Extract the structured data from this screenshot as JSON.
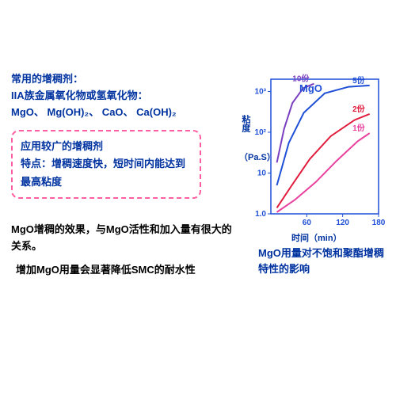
{
  "headings": {
    "line1": "常用的增稠剂：",
    "line2": "IIA族金属氧化物或氢氧化物：",
    "line3": "MgO、 Mg(OH)₂、 CaO、 Ca(OH)₂"
  },
  "callout": {
    "line1": "应用较广的增稠剂",
    "line2": "特点：增稠速度快，短时间内能达到最高粘度"
  },
  "mid": "MgO增稠的效果，与MgO活性和加入量有很大的关系。",
  "bottom": "增加MgO用量会显著降低SMC的耐水性",
  "chart": {
    "type": "line",
    "title": "MgO",
    "y_label": "粘度",
    "y_unit": "（Pa.S）",
    "x_label": "时间（min）",
    "y_ticks": [
      "1.0",
      "10",
      "10²",
      "10³"
    ],
    "x_ticks": [
      "60",
      "120",
      "180"
    ],
    "series": [
      {
        "label": "10份",
        "color": "#7a3fbf",
        "points": [
          [
            10,
            18
          ],
          [
            22,
            120
          ],
          [
            36,
            520
          ],
          [
            54,
            1200
          ],
          [
            72,
            1550
          ]
        ]
      },
      {
        "label": "5份",
        "color": "#1e4fd6",
        "points": [
          [
            10,
            5
          ],
          [
            30,
            55
          ],
          [
            55,
            300
          ],
          [
            90,
            900
          ],
          [
            130,
            1300
          ],
          [
            165,
            1400
          ]
        ]
      },
      {
        "label": "2份",
        "color": "#e11b3c",
        "points": [
          [
            10,
            1.4
          ],
          [
            35,
            5
          ],
          [
            65,
            22
          ],
          [
            100,
            80
          ],
          [
            140,
            200
          ],
          [
            165,
            280
          ]
        ]
      },
      {
        "label": "1份",
        "color": "#e8419e",
        "points": [
          [
            10,
            1.1
          ],
          [
            40,
            2.2
          ],
          [
            75,
            6
          ],
          [
            110,
            20
          ],
          [
            145,
            60
          ],
          [
            165,
            95
          ]
        ]
      }
    ],
    "axis_color": "#1e4fd6",
    "background": "#ffffff",
    "x_range": [
      0,
      180
    ],
    "y_range_log": [
      0,
      3.3
    ]
  },
  "caption": "MgO用量对不饱和聚酯增稠特性的影响"
}
